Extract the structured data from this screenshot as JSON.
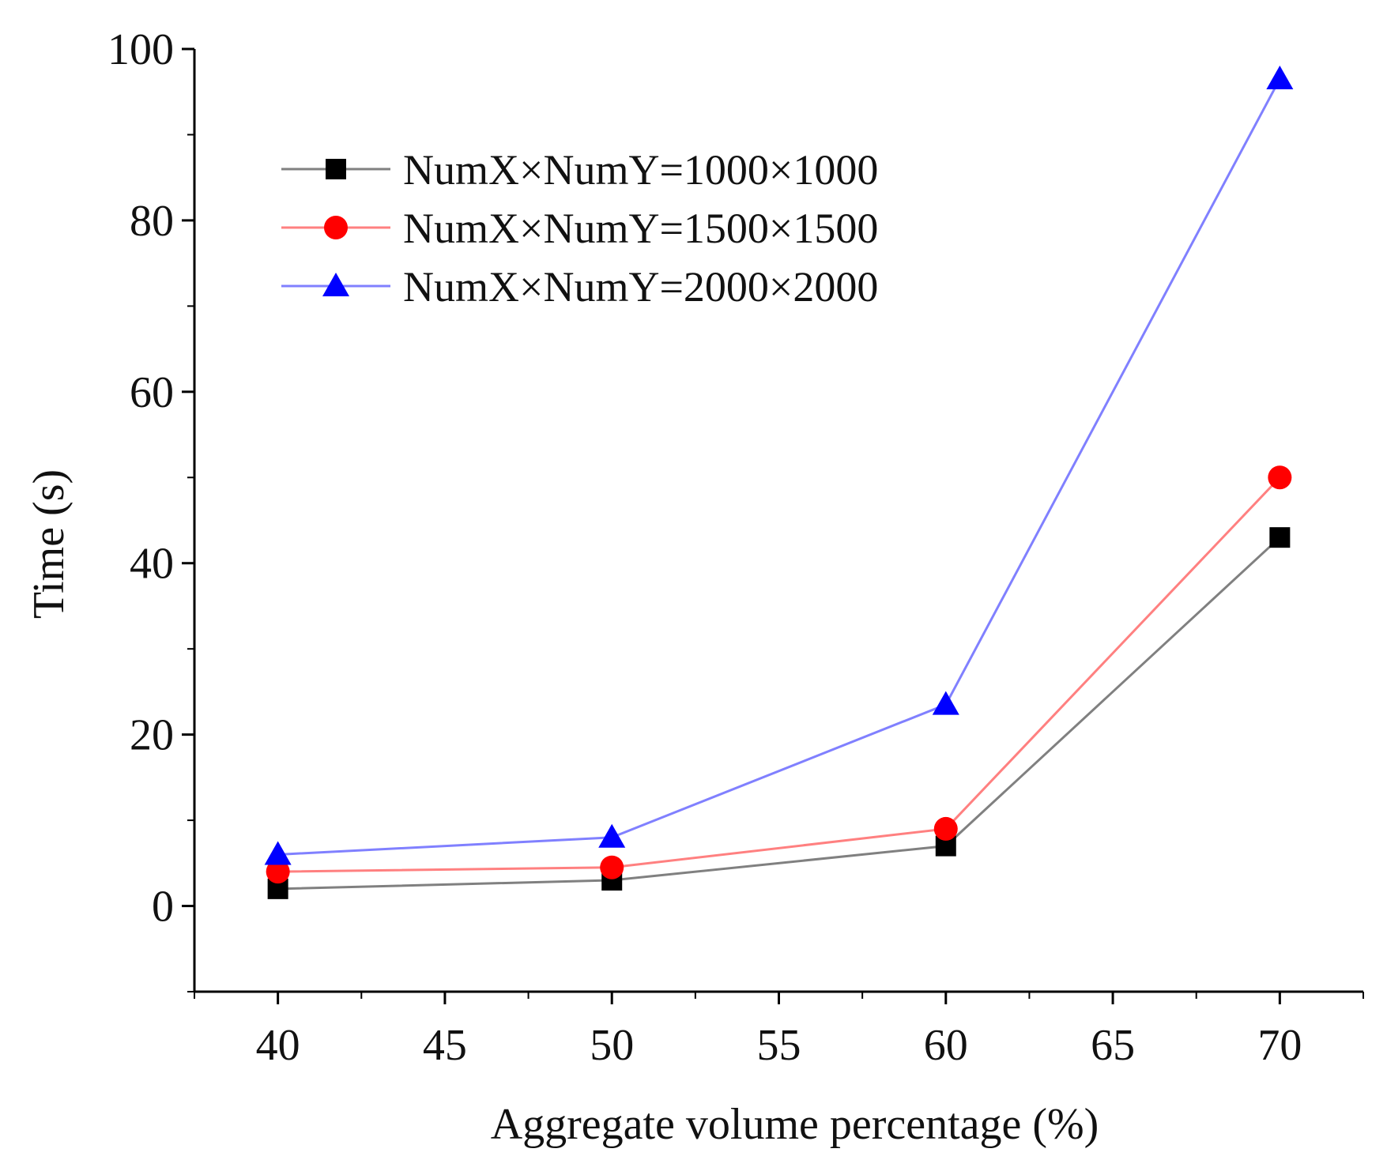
{
  "chart_data": {
    "type": "line",
    "title": "",
    "xlabel": "Aggregate volume percentage (%)",
    "ylabel": "Time (s)",
    "x": [
      40,
      50,
      60,
      70
    ],
    "xlim": [
      37.5,
      72.5
    ],
    "ylim": [
      -10,
      100
    ],
    "xticks": [
      40,
      45,
      50,
      55,
      60,
      65,
      70
    ],
    "xtick_labels": [
      "40",
      "45",
      "50",
      "55",
      "60",
      "65",
      "70"
    ],
    "yticks": [
      0,
      20,
      40,
      60,
      80,
      100
    ],
    "ytick_labels": [
      "0",
      "20",
      "40",
      "60",
      "80",
      "100"
    ],
    "grid": false,
    "legend_position": "top-left",
    "series": [
      {
        "name": "NumX×NumY=1000×1000",
        "values": [
          2.0,
          3.0,
          7.0,
          43.0
        ],
        "color": "#000000",
        "line_color": "#808080",
        "marker": "square"
      },
      {
        "name": "NumX×NumY=1500×1500",
        "values": [
          4.0,
          4.5,
          9.0,
          50.0
        ],
        "color": "#ff0000",
        "line_color": "#ff8080",
        "marker": "circle"
      },
      {
        "name": "NumX×NumY=2000×2000",
        "values": [
          6.0,
          8.0,
          23.5,
          96.5
        ],
        "color": "#0000ff",
        "line_color": "#8080ff",
        "marker": "triangle"
      }
    ]
  }
}
